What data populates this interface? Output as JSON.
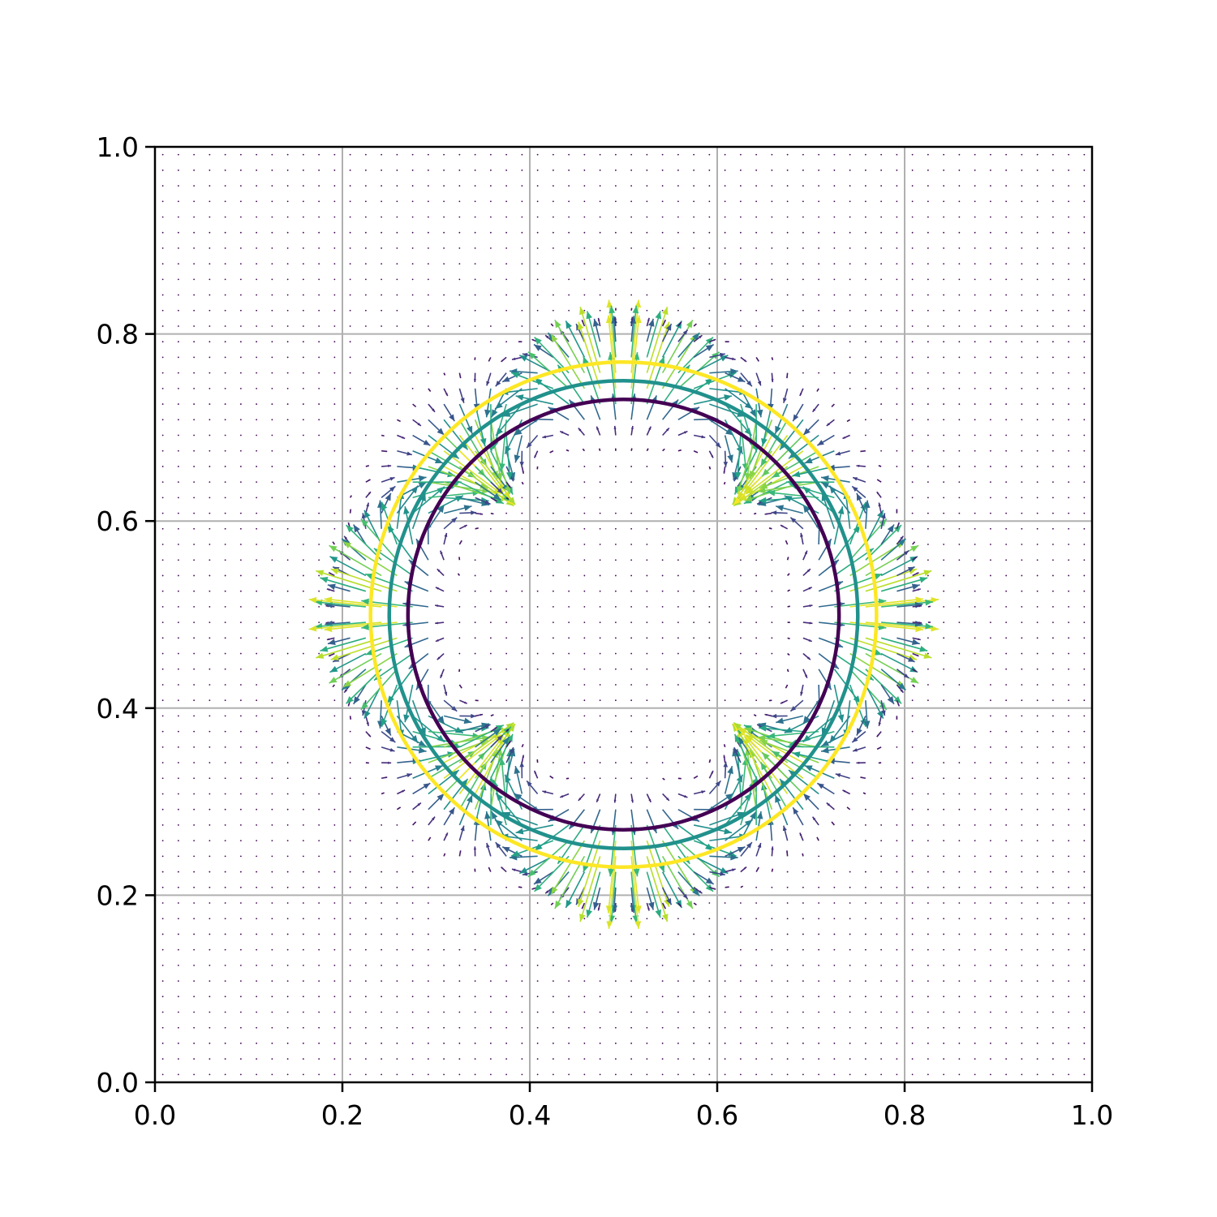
{
  "chart_data": {
    "type": "quiver",
    "title": "",
    "xlabel": "",
    "ylabel": "",
    "xlim": [
      0.0,
      1.0
    ],
    "ylim": [
      0.0,
      1.0
    ],
    "grid": true,
    "x_ticks": [
      "0.0",
      "0.2",
      "0.4",
      "0.6",
      "0.8",
      "1.0"
    ],
    "y_ticks": [
      "0.0",
      "0.2",
      "0.4",
      "0.6",
      "0.8",
      "1.0"
    ],
    "circles": [
      {
        "center": [
          0.5,
          0.5
        ],
        "radius": 0.23,
        "color": "#440154"
      },
      {
        "center": [
          0.5,
          0.5
        ],
        "radius": 0.25,
        "color": "#21918c"
      },
      {
        "center": [
          0.5,
          0.5
        ],
        "radius": 0.27,
        "color": "#fde725"
      }
    ],
    "field": {
      "grid_n": 60,
      "center": [
        0.5,
        0.5
      ],
      "ring_radius": 0.25,
      "ring_width": 0.04,
      "angular_modes": 4,
      "colormap": "viridis"
    }
  }
}
